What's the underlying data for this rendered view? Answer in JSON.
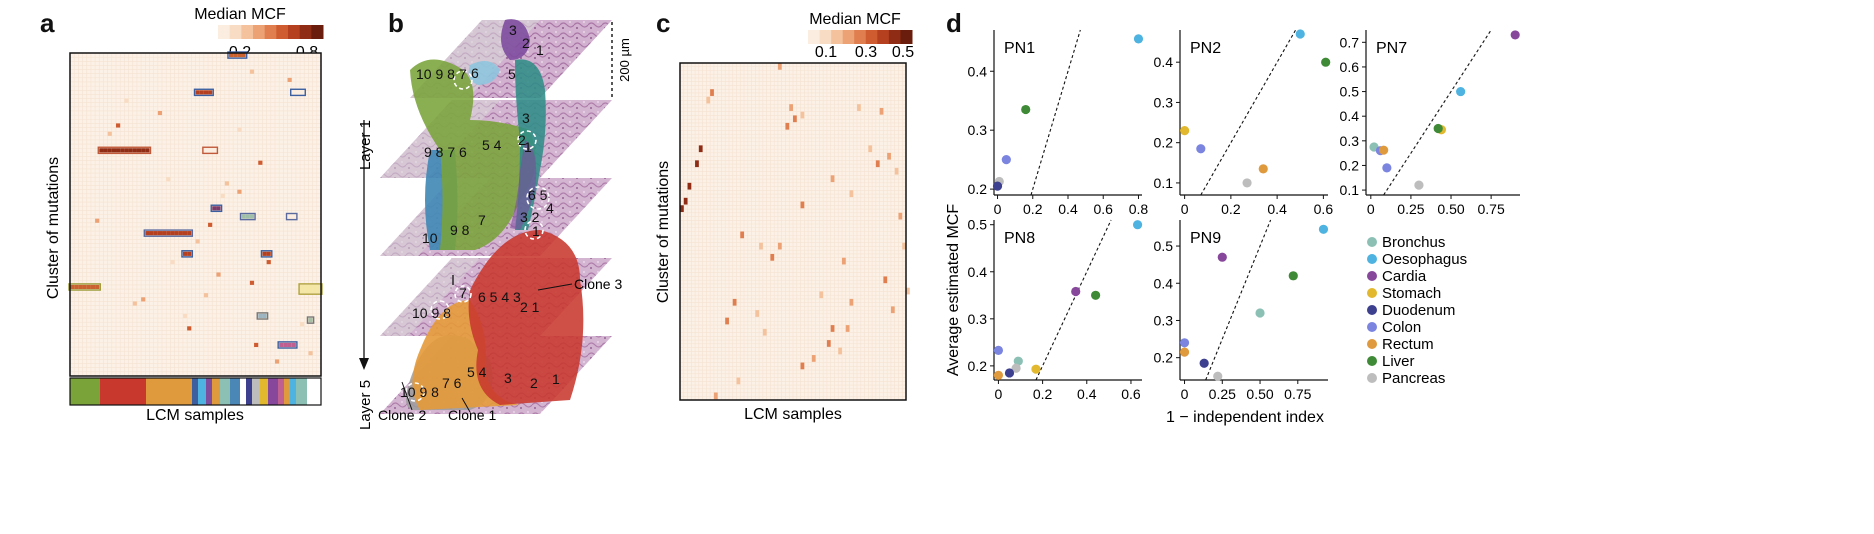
{
  "panels": {
    "a": {
      "label": "a",
      "colorbar_title": "Median MCF",
      "colorbar_ticks": [
        "0.2",
        "0.8"
      ],
      "ylabel": "Cluster of mutations",
      "xlabel": "LCM samples",
      "colorbar_colors": [
        "#fbeee1",
        "#f8dcc3",
        "#f4c39d",
        "#eca274",
        "#e07e4f",
        "#cf5c31",
        "#b4401f",
        "#8f2c15",
        "#6b1d0d"
      ]
    },
    "b": {
      "label": "b",
      "scale_label": "200 µm",
      "layer_top": "Layer 1",
      "layer_bottom": "Layer 5",
      "clones": [
        "Clone 3",
        "Clone 2",
        "Clone 1"
      ],
      "colors": {
        "green": "#7aa33a",
        "blue": "#3f87b5",
        "purple": "#7e4d9e",
        "teal": "#2f8d88",
        "red": "#c8382d",
        "orange": "#e69a3a",
        "gray": "#9c9c9c",
        "lightblue": "#8ec5de"
      },
      "numbers": {
        "l1_green": "10 9 8 7",
        "l1_light": "6",
        "l1_teal": "5",
        "l1_purple": [
          "3",
          "2",
          "1"
        ],
        "l2_green": [
          "9 8 7 6",
          "5 4"
        ],
        "l2_teal": [
          "3",
          "2",
          "1"
        ],
        "l3_green": [
          "10",
          "9 8",
          "7"
        ],
        "l3_circle": [
          "6 5",
          "4",
          "3 2",
          "1"
        ],
        "l4_gray": "10 9 8",
        "l4_circle": "7",
        "l4_red": [
          "6 5 4 3",
          "2 1"
        ],
        "l5_orange": [
          "10 9 8",
          "7 6",
          "5 4"
        ],
        "l5_red": [
          "3",
          "2",
          "1"
        ]
      }
    },
    "c": {
      "label": "c",
      "colorbar_title": "Median MCF",
      "colorbar_ticks": [
        "0.1",
        "0.3",
        "0.5"
      ],
      "ylabel": "Cluster of mutations",
      "xlabel": "LCM samples",
      "colorbar_colors": [
        "#fbeee1",
        "#f8dcc3",
        "#f4c39d",
        "#eca274",
        "#e07e4f",
        "#cf5c31",
        "#b4401f",
        "#8f2c15",
        "#6b1d0d"
      ]
    },
    "d": {
      "label": "d",
      "ylabel": "Average estimated MCF",
      "xlabel": "1 − independent index"
    }
  },
  "legend": [
    {
      "label": "Bronchus",
      "color": "#8cc0b5"
    },
    {
      "label": "Oesophagus",
      "color": "#4eb3e0"
    },
    {
      "label": "Cardia",
      "color": "#87489c"
    },
    {
      "label": "Stomach",
      "color": "#e2b82f"
    },
    {
      "label": "Duodenum",
      "color": "#3d3f8f"
    },
    {
      "label": "Colon",
      "color": "#7b85e0"
    },
    {
      "label": "Rectum",
      "color": "#e09a3e"
    },
    {
      "label": "Liver",
      "color": "#3f8a37"
    },
    {
      "label": "Pancreas",
      "color": "#bdbdbd"
    }
  ],
  "chart_data": [
    {
      "type": "scatter",
      "title": "PN1",
      "xlim": [
        -0.02,
        0.82
      ],
      "ylim": [
        0.19,
        0.47
      ],
      "xticks": [
        "0",
        "0.2",
        "0.4",
        "0.6",
        "0.8"
      ],
      "xtick_values": [
        0,
        0.2,
        0.4,
        0.6,
        0.8
      ],
      "yticks": [
        "0.2",
        "0.3",
        "0.4"
      ],
      "ytick_values": [
        0.2,
        0.3,
        0.4
      ],
      "show_xticks": true,
      "show_ylabel_ticks": true,
      "points": [
        {
          "x": 0.8,
          "y": 0.455,
          "tissue": "Oesophagus"
        },
        {
          "x": 0.16,
          "y": 0.335,
          "tissue": "Liver"
        },
        {
          "x": 0.05,
          "y": 0.25,
          "tissue": "Colon"
        },
        {
          "x": 0.01,
          "y": 0.213,
          "tissue": "Pancreas"
        },
        {
          "x": 0.0,
          "y": 0.205,
          "tissue": "Duodenum"
        }
      ]
    },
    {
      "type": "scatter",
      "title": "PN2",
      "xlim": [
        -0.02,
        0.62
      ],
      "ylim": [
        0.07,
        0.48
      ],
      "xticks": [
        "0",
        "0.2",
        "0.4",
        "0.6"
      ],
      "xtick_values": [
        0,
        0.2,
        0.4,
        0.6
      ],
      "yticks": [
        "0.1",
        "0.2",
        "0.3",
        "0.4"
      ],
      "ytick_values": [
        0.1,
        0.2,
        0.3,
        0.4
      ],
      "show_xticks": true,
      "points": [
        {
          "x": 0.5,
          "y": 0.47,
          "tissue": "Oesophagus"
        },
        {
          "x": 0.61,
          "y": 0.4,
          "tissue": "Liver"
        },
        {
          "x": 0.0,
          "y": 0.23,
          "tissue": "Stomach"
        },
        {
          "x": 0.07,
          "y": 0.185,
          "tissue": "Colon"
        },
        {
          "x": 0.34,
          "y": 0.135,
          "tissue": "Rectum"
        },
        {
          "x": 0.27,
          "y": 0.1,
          "tissue": "Pancreas"
        }
      ]
    },
    {
      "type": "scatter",
      "title": "PN7",
      "xlim": [
        -0.03,
        0.93
      ],
      "ylim": [
        0.08,
        0.75
      ],
      "xticks": [
        "0",
        "0.25",
        "0.50",
        "0.75"
      ],
      "xtick_values": [
        0,
        0.25,
        0.5,
        0.75
      ],
      "yticks": [
        "0.1",
        "0.2",
        "0.3",
        "0.4",
        "0.5",
        "0.6",
        "0.7"
      ],
      "ytick_values": [
        0.1,
        0.2,
        0.3,
        0.4,
        0.5,
        0.6,
        0.7
      ],
      "show_xticks": true,
      "points": [
        {
          "x": 0.9,
          "y": 0.73,
          "tissue": "Cardia"
        },
        {
          "x": 0.56,
          "y": 0.5,
          "tissue": "Oesophagus"
        },
        {
          "x": 0.44,
          "y": 0.345,
          "tissue": "Stomach"
        },
        {
          "x": 0.42,
          "y": 0.35,
          "tissue": "Liver"
        },
        {
          "x": 0.02,
          "y": 0.275,
          "tissue": "Bronchus"
        },
        {
          "x": 0.06,
          "y": 0.26,
          "tissue": "Colon"
        },
        {
          "x": 0.08,
          "y": 0.262,
          "tissue": "Rectum"
        },
        {
          "x": 0.1,
          "y": 0.19,
          "tissue": "Colon"
        },
        {
          "x": 0.3,
          "y": 0.12,
          "tissue": "Pancreas"
        }
      ]
    },
    {
      "type": "scatter",
      "title": "PN8",
      "xlim": [
        -0.02,
        0.65
      ],
      "ylim": [
        0.17,
        0.51
      ],
      "xticks": [
        "0",
        "0.2",
        "0.4",
        "0.6"
      ],
      "xtick_values": [
        0,
        0.2,
        0.4,
        0.6
      ],
      "yticks": [
        "0.2",
        "0.3",
        "0.4",
        "0.5"
      ],
      "ytick_values": [
        0.2,
        0.3,
        0.4,
        0.5
      ],
      "show_xticks": true,
      "points": [
        {
          "x": 0.63,
          "y": 0.5,
          "tissue": "Oesophagus"
        },
        {
          "x": 0.35,
          "y": 0.358,
          "tissue": "Cardia"
        },
        {
          "x": 0.44,
          "y": 0.35,
          "tissue": "Liver"
        },
        {
          "x": 0.0,
          "y": 0.233,
          "tissue": "Colon"
        },
        {
          "x": 0.09,
          "y": 0.21,
          "tissue": "Bronchus"
        },
        {
          "x": 0.08,
          "y": 0.195,
          "tissue": "Pancreas"
        },
        {
          "x": 0.17,
          "y": 0.193,
          "tissue": "Stomach"
        },
        {
          "x": 0.05,
          "y": 0.185,
          "tissue": "Duodenum"
        },
        {
          "x": 0.0,
          "y": 0.18,
          "tissue": "Rectum"
        }
      ]
    },
    {
      "type": "scatter",
      "title": "PN9",
      "xlim": [
        -0.03,
        0.95
      ],
      "ylim": [
        0.14,
        0.57
      ],
      "xticks": [
        "0",
        "0.25",
        "0.50",
        "0.75"
      ],
      "xtick_values": [
        0,
        0.25,
        0.5,
        0.75
      ],
      "yticks": [
        "0.2",
        "0.3",
        "0.4",
        "0.5"
      ],
      "ytick_values": [
        0.2,
        0.3,
        0.4,
        0.5
      ],
      "show_xticks": true,
      "points": [
        {
          "x": 0.92,
          "y": 0.545,
          "tissue": "Oesophagus"
        },
        {
          "x": 0.25,
          "y": 0.47,
          "tissue": "Cardia"
        },
        {
          "x": 0.72,
          "y": 0.42,
          "tissue": "Liver"
        },
        {
          "x": 0.5,
          "y": 0.32,
          "tissue": "Bronchus"
        },
        {
          "x": 0.0,
          "y": 0.24,
          "tissue": "Colon"
        },
        {
          "x": 0.0,
          "y": 0.215,
          "tissue": "Rectum"
        },
        {
          "x": 0.13,
          "y": 0.185,
          "tissue": "Duodenum"
        },
        {
          "x": 0.22,
          "y": 0.15,
          "tissue": "Pancreas"
        }
      ]
    }
  ]
}
